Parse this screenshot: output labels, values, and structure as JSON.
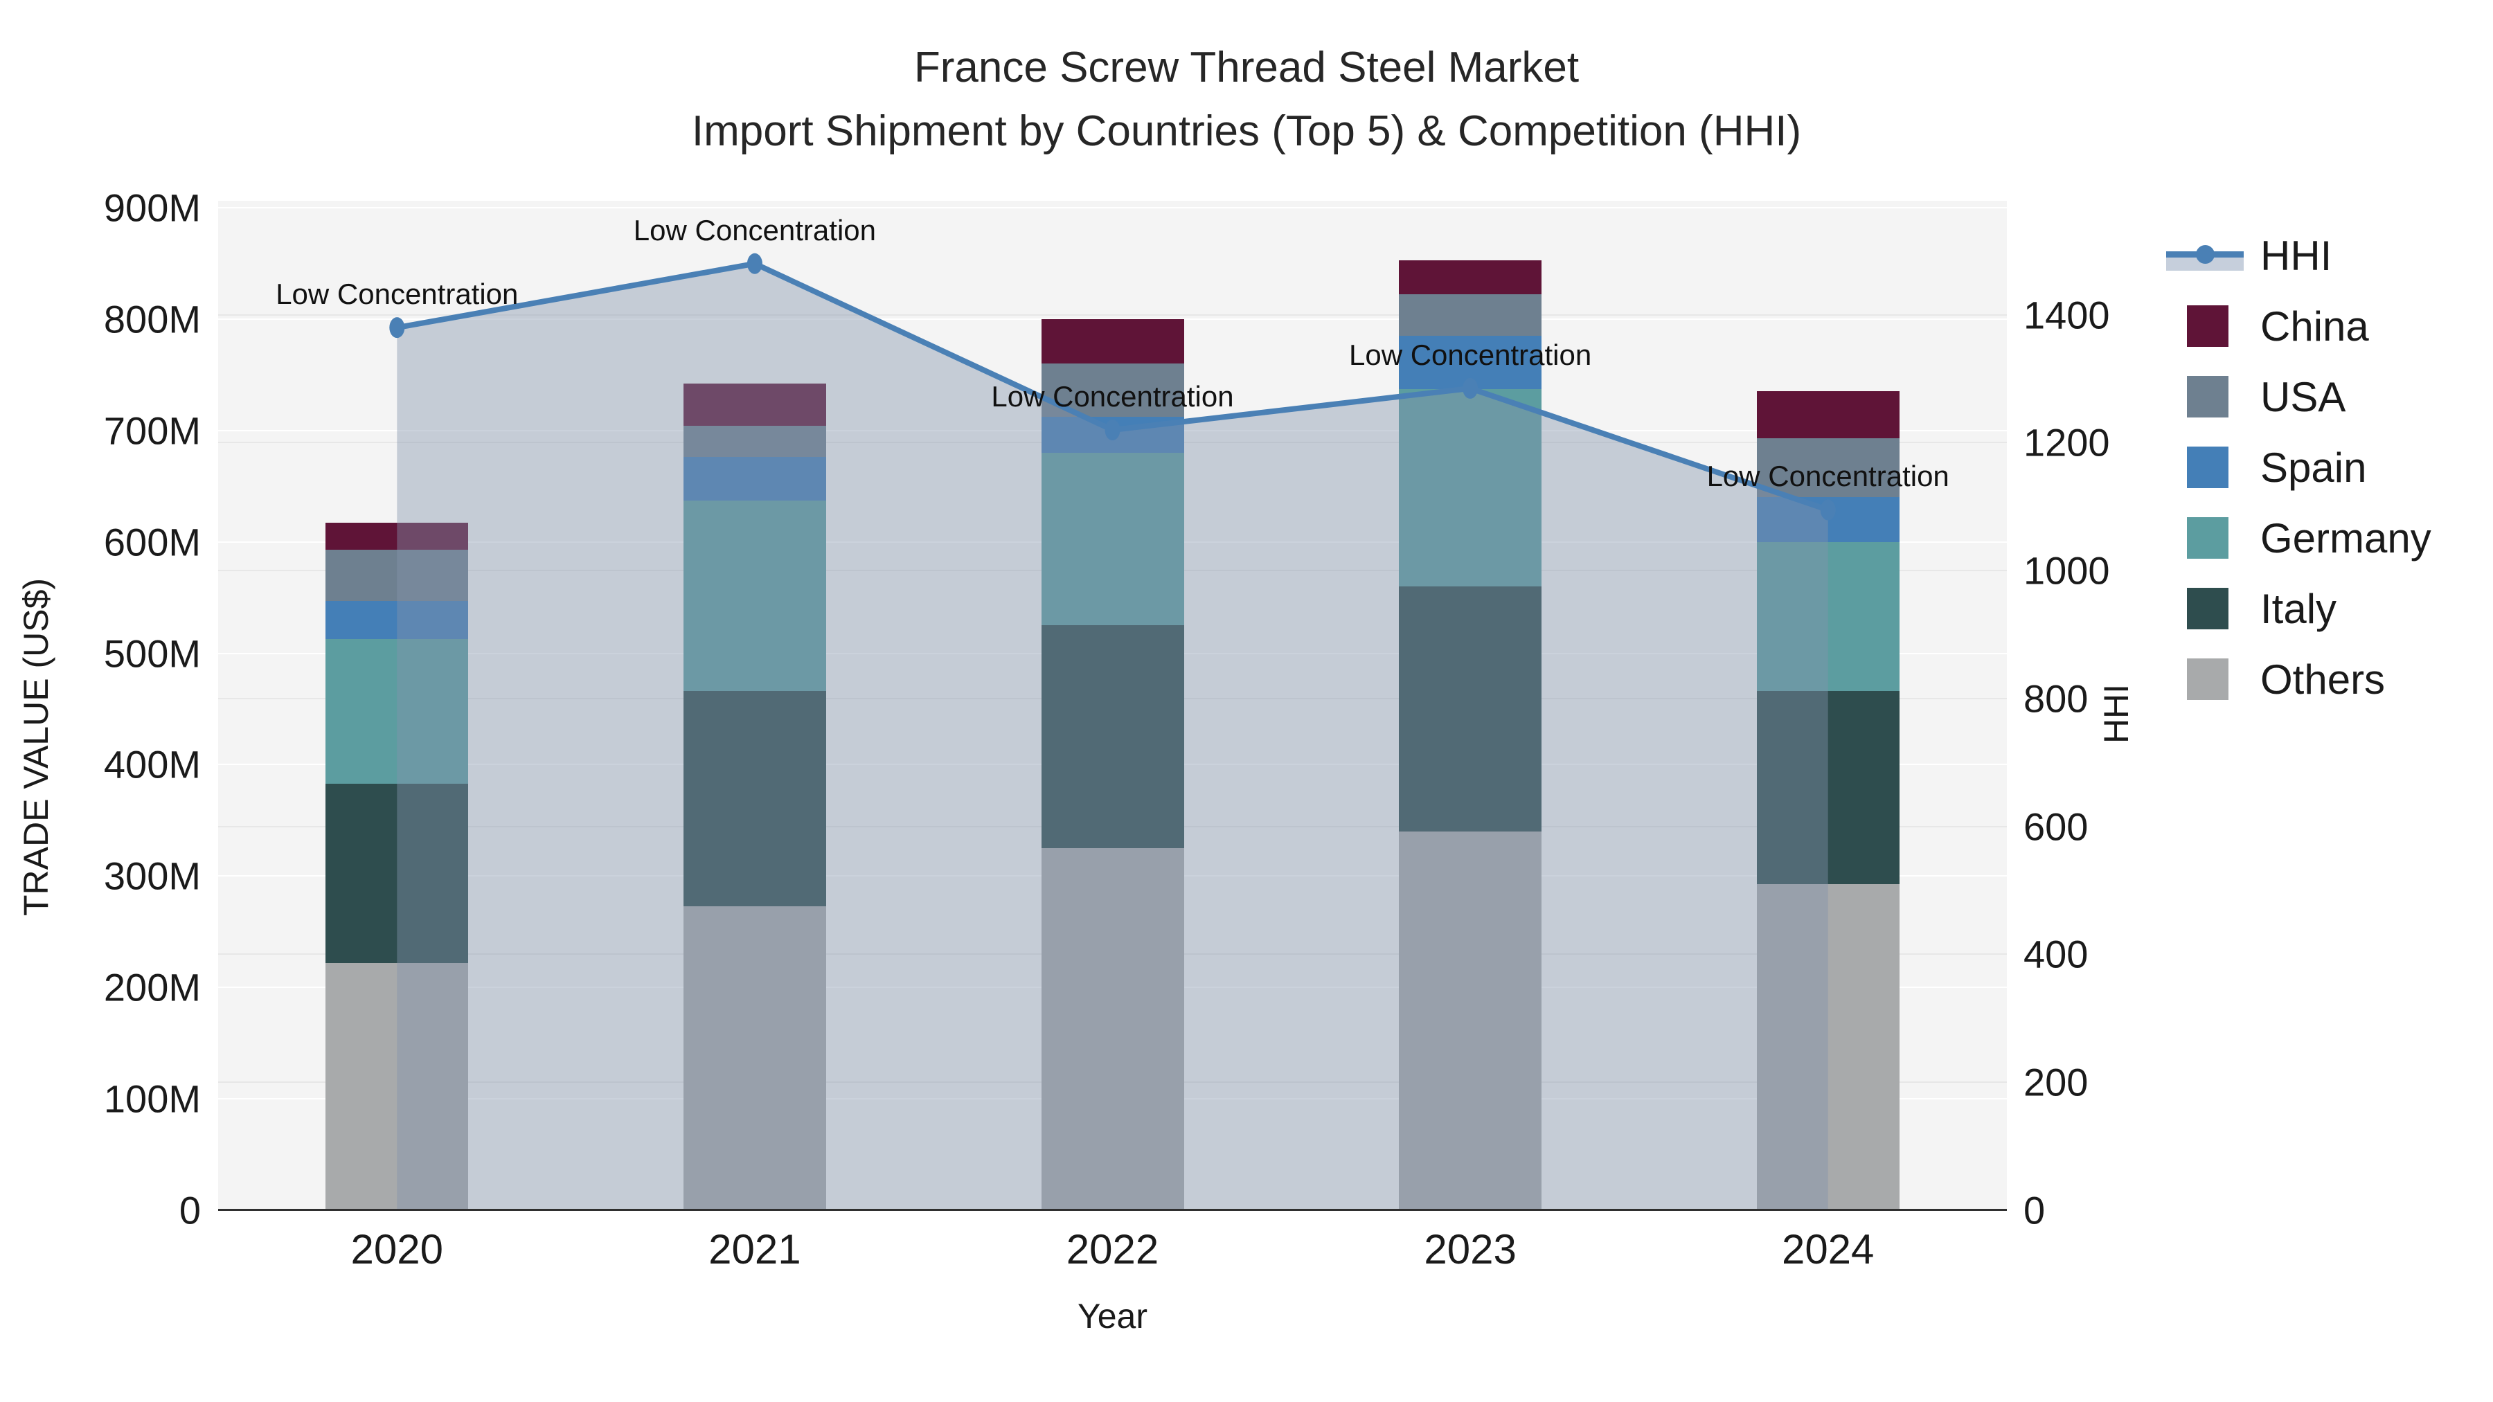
{
  "title": {
    "line1": "France Screw Thread Steel Market",
    "line2": "Import Shipment by Countries (Top 5) & Competition (HHI)"
  },
  "axes": {
    "x_title": "Year",
    "y_left_title": "TRADE VALUE (US$)",
    "y_right_title": "HHI",
    "x_tick_labels": [
      "2020",
      "2021",
      "2022",
      "2023",
      "2024"
    ],
    "y_left_tick_labels": [
      "0",
      "100M",
      "200M",
      "300M",
      "400M",
      "500M",
      "600M",
      "700M",
      "800M",
      "900M"
    ],
    "y_left_tick_values": [
      0,
      100,
      200,
      300,
      400,
      500,
      600,
      700,
      800,
      900
    ],
    "y_right_tick_labels": [
      "0",
      "200",
      "400",
      "600",
      "800",
      "1000",
      "1200",
      "1400"
    ],
    "y_right_tick_values": [
      0,
      200,
      400,
      600,
      800,
      1000,
      1200,
      1400
    ]
  },
  "legend": {
    "items": [
      {
        "label": "HHI",
        "type": "line"
      },
      {
        "label": "China",
        "type": "square",
        "color": "#5f1437"
      },
      {
        "label": "USA",
        "type": "square",
        "color": "#6e8090"
      },
      {
        "label": "Spain",
        "type": "square",
        "color": "#447fb7"
      },
      {
        "label": "Germany",
        "type": "square",
        "color": "#5c9da0"
      },
      {
        "label": "Italy",
        "type": "square",
        "color": "#2e4d4e"
      },
      {
        "label": "Others",
        "type": "square",
        "color": "#a8aaab"
      }
    ]
  },
  "colors": {
    "figure_bg": "#ffffff",
    "plot_bg": "#f4f4f4",
    "axis_line": "#2f2f2f",
    "grid_left": "#ffffff",
    "grid_right": "#e7e7e7",
    "hhi_line": "#4a80b5",
    "hhi_area_fill": "rgba(130,148,171,0.42)",
    "legend_band": "#c6cfdc",
    "china": "#5f1437",
    "usa": "#6e8090",
    "spain": "#447fb7",
    "germany": "#5c9da0",
    "italy": "#2e4d4e",
    "others": "#a8aaab"
  },
  "chart_data": {
    "type": "composed_stacked_bar_and_line",
    "title": "France Screw Thread Steel Market — Import Shipment by Countries (Top 5) & Competition (HHI)",
    "categories": [
      "2020",
      "2021",
      "2022",
      "2023",
      "2024"
    ],
    "xlabel": "Year",
    "ylabel_left": "TRADE VALUE (US$)",
    "ylabel_right": "HHI",
    "y_left_range_millions": [
      0,
      900
    ],
    "y_right_range": [
      0,
      1567
    ],
    "grid": "horizontal",
    "legend_position": "right",
    "bar_unit": "M US$",
    "bar_stack_order_bottom_to_top": [
      "Others",
      "Italy",
      "Germany",
      "Spain",
      "USA",
      "China"
    ],
    "series": [
      {
        "name": "Others",
        "color": "#a8aaab",
        "values": [
          222,
          273,
          325,
          340,
          293
        ]
      },
      {
        "name": "Italy",
        "color": "#2e4d4e",
        "values": [
          161,
          193,
          200,
          220,
          173
        ]
      },
      {
        "name": "Germany",
        "color": "#5c9da0",
        "values": [
          130,
          171,
          155,
          177,
          134
        ]
      },
      {
        "name": "Spain",
        "color": "#447fb7",
        "values": [
          34,
          39,
          32,
          48,
          40
        ]
      },
      {
        "name": "USA",
        "color": "#6e8090",
        "values": [
          46,
          28,
          48,
          37,
          53
        ]
      },
      {
        "name": "China",
        "color": "#5f1437",
        "values": [
          24,
          38,
          40,
          31,
          42
        ]
      }
    ],
    "bar_totals_millions": [
      617,
      742,
      800,
      853,
      735
    ],
    "line_series": {
      "name": "HHI",
      "axis": "right",
      "color": "#4a80b5",
      "area_fill": "rgba(130,148,171,0.42)",
      "values": [
        1380,
        1480,
        1220,
        1285,
        1095
      ]
    },
    "annotations": [
      {
        "category": "2020",
        "text": "Low Concentration"
      },
      {
        "category": "2021",
        "text": "Low Concentration"
      },
      {
        "category": "2022",
        "text": "Low Concentration"
      },
      {
        "category": "2023",
        "text": "Low Concentration"
      },
      {
        "category": "2024",
        "text": "Low Concentration"
      }
    ]
  }
}
